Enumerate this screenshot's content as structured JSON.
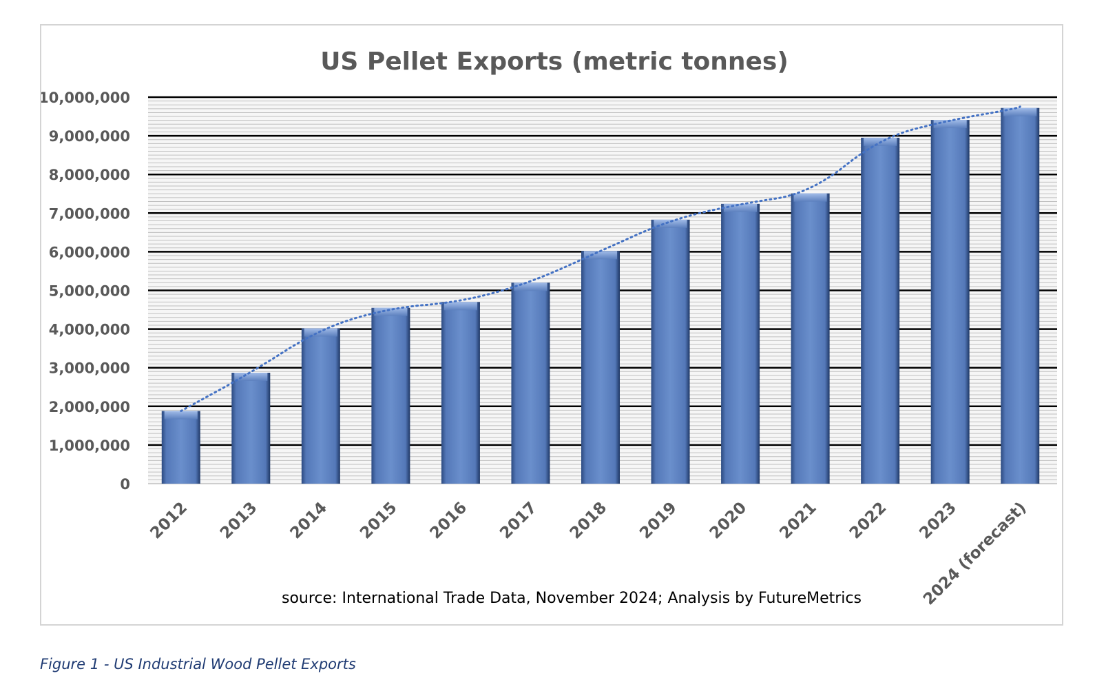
{
  "chart_data": {
    "type": "bar",
    "title": "US Pellet Exports (metric tonnes)",
    "categories": [
      "2012",
      "2013",
      "2014",
      "2015",
      "2016",
      "2017",
      "2018",
      "2019",
      "2020",
      "2021",
      "2022",
      "2023",
      "2024 (forecast)"
    ],
    "values": [
      1880000,
      2870000,
      4020000,
      4550000,
      4700000,
      5200000,
      6020000,
      6830000,
      7240000,
      7510000,
      8950000,
      9410000,
      9720000
    ],
    "series": [
      {
        "values": [
          1880000,
          2870000,
          4020000,
          4550000,
          4700000,
          5200000,
          6020000,
          6830000,
          7240000,
          7510000,
          8950000,
          9410000,
          9720000
        ]
      }
    ],
    "ylim": [
      0,
      10000000
    ],
    "yticks": [
      "0",
      "1,000,000",
      "2,000,000",
      "3,000,000",
      "4,000,000",
      "5,000,000",
      "6,000,000",
      "7,000,000",
      "8,000,000",
      "9,000,000",
      "10,000,000"
    ],
    "ytick_values": [
      0,
      1000000,
      2000000,
      3000000,
      4000000,
      5000000,
      6000000,
      7000000,
      8000000,
      9000000,
      10000000
    ],
    "xlabel": "",
    "ylabel": "",
    "grid": true,
    "trendline": "dotted polynomial",
    "bar_color": "#5b7fbd",
    "trendline_color": "#4472c4",
    "source": "source: International Trade Data, November 2024; Analysis by FutureMetrics"
  },
  "caption": "Figure 1 - US Industrial Wood Pellet Exports"
}
